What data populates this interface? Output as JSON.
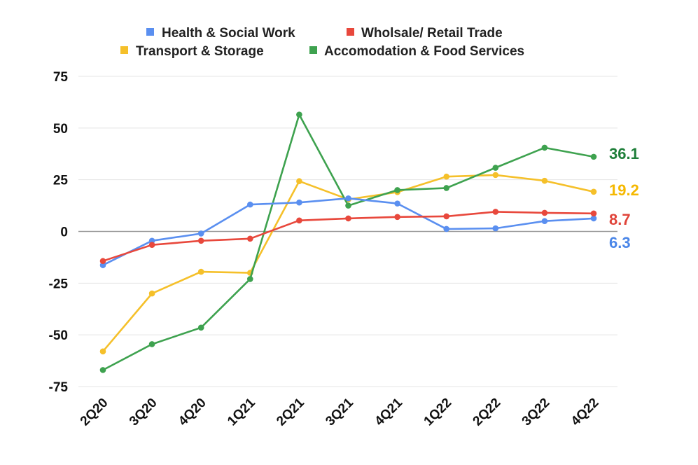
{
  "chart_data": {
    "type": "line",
    "categories": [
      "2Q20",
      "3Q20",
      "4Q20",
      "1Q21",
      "2Q21",
      "3Q21",
      "4Q21",
      "1Q22",
      "2Q22",
      "3Q22",
      "4Q22"
    ],
    "ylim": [
      -75,
      75
    ],
    "yticks": [
      75,
      50,
      25,
      0,
      -25,
      -50,
      -75
    ],
    "ytick_labels": [
      "75",
      "50",
      "25",
      "0",
      "-25",
      "-50",
      "-75"
    ],
    "grid": true,
    "legend_position": "top",
    "series": [
      {
        "name": "Health & Social Work",
        "color": "#5a8ff0",
        "values": [
          -16.3,
          -4.5,
          -1.0,
          13.0,
          14.0,
          16.0,
          13.5,
          1.2,
          1.5,
          5.0,
          6.3
        ],
        "end_label": "6.3"
      },
      {
        "name": "Wholsale/ Retail Trade",
        "color": "#e8483c",
        "values": [
          -14.3,
          -6.5,
          -4.5,
          -3.5,
          5.3,
          6.3,
          7.0,
          7.3,
          9.5,
          9.0,
          8.7
        ],
        "end_label": "8.7"
      },
      {
        "name": "Transport & Storage",
        "color": "#f5c02a",
        "values": [
          -58.0,
          -30.0,
          -19.5,
          -20.0,
          24.3,
          15.5,
          19.0,
          26.5,
          27.3,
          24.5,
          19.2
        ],
        "end_label": "19.2"
      },
      {
        "name": "Accomodation & Food Services",
        "color": "#3ea24f",
        "values": [
          -67.0,
          -54.5,
          -46.5,
          -23.0,
          56.5,
          12.5,
          20.0,
          21.0,
          30.8,
          40.5,
          36.1
        ],
        "end_label": "36.1"
      }
    ],
    "end_label_colors": [
      "#4a86e8",
      "#e0443a",
      "#f5b800",
      "#1f7f3a"
    ]
  }
}
